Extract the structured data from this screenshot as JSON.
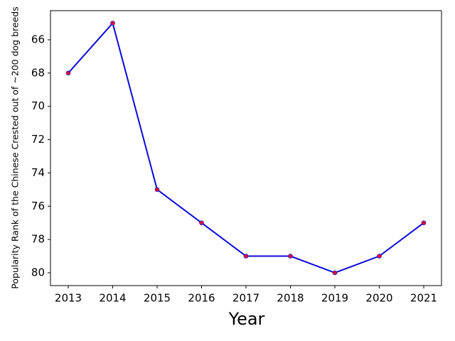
{
  "chart_data": {
    "type": "line",
    "x_label": "Year",
    "y_label": "Popularity Rank of the Chinese Crested out of ~200 dog breeds",
    "x": [
      2013,
      2014,
      2015,
      2016,
      2017,
      2018,
      2019,
      2020,
      2021
    ],
    "series": [
      {
        "color": "#0a0ad8",
        "marker_color": "#d8103a",
        "values": [
          68,
          65,
          75,
          77,
          79,
          79,
          80,
          79,
          77
        ]
      }
    ],
    "xlim": [
      2012.6,
      2021.4
    ],
    "xticks": [
      2013,
      2014,
      2015,
      2016,
      2017,
      2018,
      2019,
      2020,
      2021
    ],
    "ylim": [
      80.77,
      64.25
    ],
    "yticks": [
      66,
      68,
      70,
      72,
      74,
      76,
      78,
      80
    ],
    "grid": false
  }
}
